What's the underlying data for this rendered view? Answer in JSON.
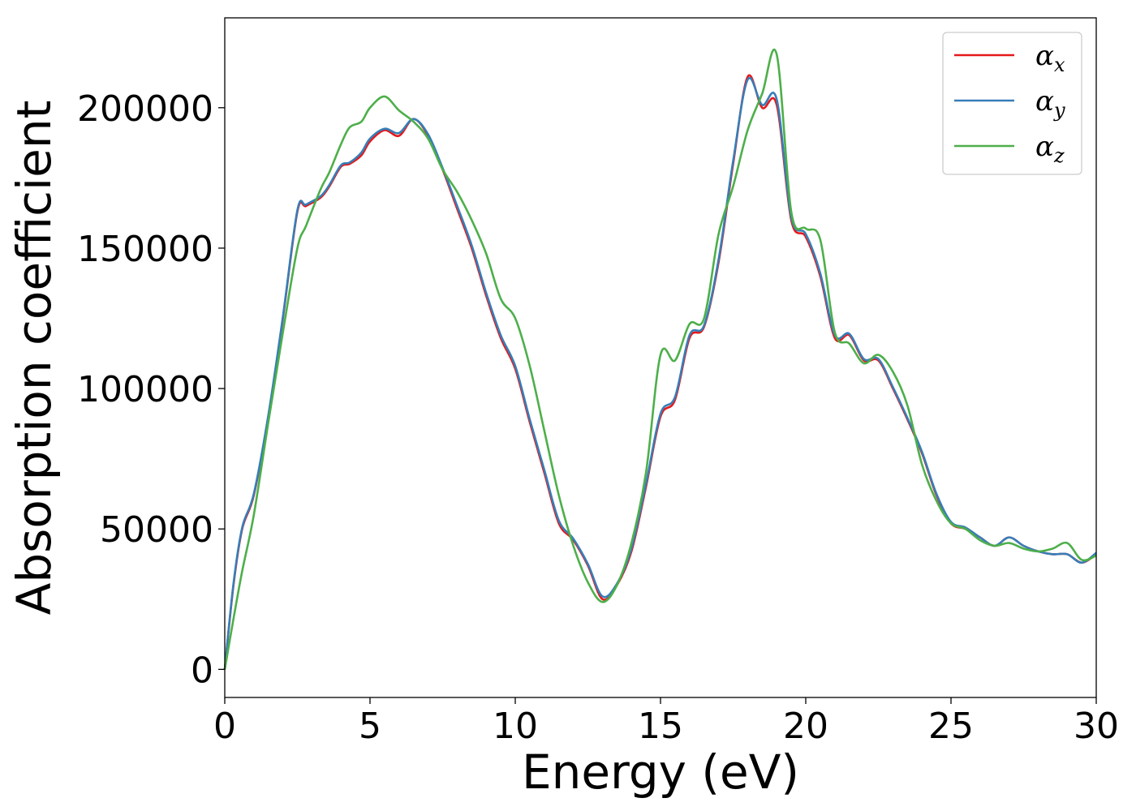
{
  "chart_data": {
    "type": "line",
    "title": "",
    "xlabel": "Energy (eV)",
    "ylabel": "Absorption coefficient",
    "xlim": [
      0,
      30
    ],
    "ylim": [
      -10000,
      232000
    ],
    "xticks": [
      0,
      5,
      10,
      15,
      20,
      25,
      30
    ],
    "xtick_labels": [
      "0",
      "5",
      "10",
      "15",
      "20",
      "25",
      "30"
    ],
    "yticks": [
      0,
      50000,
      100000,
      150000,
      200000
    ],
    "ytick_labels": [
      "0",
      "50000",
      "100000",
      "150000",
      "200000"
    ],
    "grid": false,
    "legend_position": "top-right",
    "series": [
      {
        "name": "αx",
        "symbol": "α",
        "subscript": "x",
        "color": "#e41a1c",
        "x": [
          0,
          0.3,
          0.6,
          1.0,
          1.5,
          2.0,
          2.5,
          2.8,
          3.3,
          3.6,
          4.0,
          4.3,
          4.7,
          5.0,
          5.5,
          6.0,
          6.5,
          7.0,
          7.5,
          8.0,
          8.5,
          9.0,
          9.5,
          10.0,
          10.5,
          11.0,
          11.5,
          12.0,
          12.5,
          13.0,
          13.5,
          14.0,
          14.5,
          15.0,
          15.5,
          16.0,
          16.5,
          17.0,
          17.5,
          18.0,
          18.5,
          19.0,
          19.5,
          20.0,
          20.5,
          21.0,
          21.5,
          22.0,
          22.5,
          23.0,
          23.5,
          24.0,
          24.5,
          25.0,
          25.5,
          26.0,
          26.5,
          27.0,
          27.5,
          28.0,
          28.5,
          29.0,
          29.5,
          30.0
        ],
        "y": [
          0,
          30000,
          50000,
          62000,
          90000,
          125000,
          163000,
          165000,
          168000,
          172000,
          179000,
          180000,
          183000,
          188000,
          192000,
          190000,
          196000,
          190000,
          178000,
          164000,
          150000,
          133000,
          118000,
          107000,
          88000,
          70000,
          52000,
          46000,
          37000,
          25000,
          30000,
          42000,
          65000,
          90000,
          96000,
          118000,
          122000,
          145000,
          180000,
          211000,
          200000,
          201000,
          160000,
          154000,
          140000,
          118000,
          119000,
          110000,
          110000,
          100000,
          89000,
          77000,
          62000,
          52000,
          50000,
          47000,
          44000,
          47000,
          44000,
          42000,
          41000,
          41000,
          38000,
          41000
        ]
      },
      {
        "name": "αy",
        "symbol": "α",
        "subscript": "y",
        "color": "#377eb8",
        "x": [
          0,
          0.3,
          0.6,
          1.0,
          1.5,
          2.0,
          2.5,
          2.8,
          3.3,
          3.6,
          4.0,
          4.3,
          4.7,
          5.0,
          5.5,
          6.0,
          6.5,
          7.0,
          7.5,
          8.0,
          8.5,
          9.0,
          9.5,
          10.0,
          10.5,
          11.0,
          11.5,
          12.0,
          12.5,
          13.0,
          13.5,
          14.0,
          14.5,
          15.0,
          15.5,
          16.0,
          16.5,
          17.0,
          17.5,
          18.0,
          18.5,
          19.0,
          19.5,
          20.0,
          20.5,
          21.0,
          21.5,
          22.0,
          22.5,
          23.0,
          23.5,
          24.0,
          24.5,
          25.0,
          25.5,
          26.0,
          26.5,
          27.0,
          27.5,
          28.0,
          28.5,
          29.0,
          29.5,
          30.0
        ],
        "y": [
          0,
          30500,
          50500,
          62500,
          90500,
          125500,
          163500,
          165500,
          168500,
          172500,
          179500,
          180500,
          184000,
          189000,
          192500,
          191000,
          196000,
          190500,
          178500,
          165000,
          151000,
          134000,
          119000,
          108000,
          89000,
          71000,
          53000,
          46500,
          37500,
          26000,
          30500,
          43000,
          66000,
          91000,
          97000,
          119000,
          122500,
          146000,
          181000,
          210000,
          201000,
          203000,
          161000,
          155000,
          141000,
          119000,
          119500,
          110500,
          110500,
          100500,
          89500,
          77500,
          62500,
          52500,
          50500,
          47000,
          44000,
          47000,
          44000,
          42000,
          41000,
          41000,
          38000,
          41500
        ]
      },
      {
        "name": "αz",
        "symbol": "α",
        "subscript": "z",
        "color": "#4daf4a",
        "x": [
          0,
          0.3,
          0.6,
          1.0,
          1.5,
          2.0,
          2.5,
          2.8,
          3.3,
          3.6,
          4.0,
          4.3,
          4.7,
          5.0,
          5.5,
          6.0,
          6.5,
          7.0,
          7.5,
          8.0,
          8.5,
          9.0,
          9.5,
          10.0,
          10.5,
          11.0,
          11.5,
          12.0,
          12.5,
          13.0,
          13.5,
          14.0,
          14.5,
          15.0,
          15.5,
          16.0,
          16.5,
          17.0,
          17.5,
          18.0,
          18.5,
          19.0,
          19.5,
          20.0,
          20.5,
          21.0,
          21.5,
          22.0,
          22.5,
          23.0,
          23.5,
          24.0,
          24.5,
          25.0,
          25.5,
          26.0,
          26.5,
          27.0,
          27.5,
          28.0,
          28.5,
          29.0,
          29.5,
          30.0
        ],
        "y": [
          0,
          18000,
          35000,
          55000,
          88000,
          120000,
          150000,
          158000,
          171000,
          177000,
          187000,
          193000,
          195000,
          200000,
          204000,
          199000,
          195000,
          189000,
          178000,
          170000,
          160000,
          148000,
          132000,
          125000,
          108000,
          85000,
          62000,
          44000,
          31000,
          24000,
          30000,
          45000,
          70000,
          112000,
          110000,
          123000,
          125000,
          155000,
          172000,
          192000,
          205000,
          219000,
          163000,
          157000,
          153000,
          120000,
          116000,
          109000,
          112000,
          106000,
          94000,
          73000,
          60000,
          52000,
          50000,
          46000,
          44000,
          45000,
          43000,
          42000,
          43000,
          45000,
          39000,
          40500
        ]
      }
    ]
  }
}
